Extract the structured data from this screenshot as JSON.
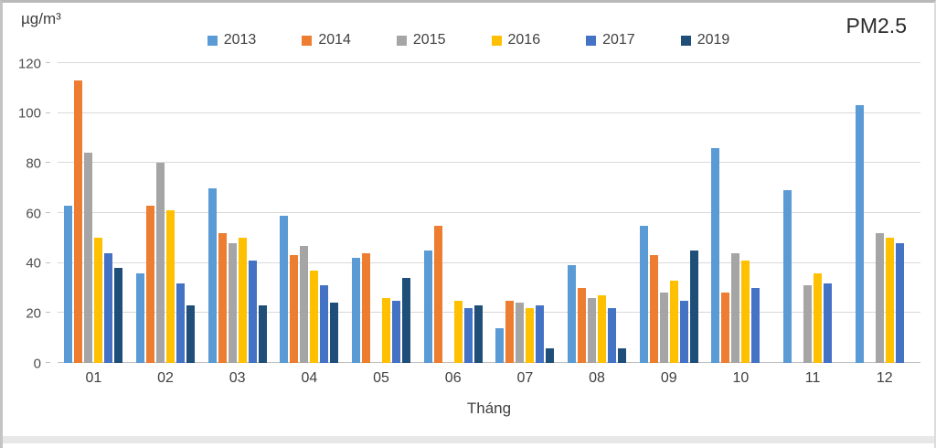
{
  "header": {
    "unit_label": "µg/m³",
    "title": "PM2.5"
  },
  "chart_data": {
    "type": "bar",
    "title": "PM2.5",
    "ylabel": "µg/m³",
    "xlabel": "Tháng",
    "ylim": [
      0,
      120
    ],
    "yticks": [
      0,
      20,
      40,
      60,
      80,
      100,
      120
    ],
    "grid": true,
    "legend_position": "top",
    "categories": [
      "01",
      "02",
      "03",
      "04",
      "05",
      "06",
      "07",
      "08",
      "09",
      "10",
      "11",
      "12"
    ],
    "series": [
      {
        "name": "2013",
        "color": "#5B9BD5",
        "values": [
          63,
          36,
          70,
          59,
          42,
          45,
          14,
          39,
          55,
          86,
          69,
          103
        ]
      },
      {
        "name": "2014",
        "color": "#ED7D31",
        "values": [
          113,
          63,
          52,
          43,
          44,
          55,
          25,
          30,
          43,
          28,
          null,
          null
        ]
      },
      {
        "name": "2015",
        "color": "#A5A5A5",
        "values": [
          84,
          80,
          48,
          47,
          null,
          null,
          24,
          26,
          28,
          44,
          31,
          52
        ]
      },
      {
        "name": "2016",
        "color": "#FFC000",
        "values": [
          50,
          61,
          50,
          37,
          26,
          25,
          22,
          27,
          33,
          41,
          36,
          50
        ]
      },
      {
        "name": "2017",
        "color": "#4472C4",
        "values": [
          44,
          32,
          41,
          31,
          25,
          22,
          23,
          22,
          25,
          30,
          32,
          48
        ]
      },
      {
        "name": "2019",
        "color": "#1F4E79",
        "values": [
          38,
          23,
          23,
          24,
          34,
          23,
          6,
          6,
          45,
          null,
          null,
          null
        ]
      }
    ]
  }
}
